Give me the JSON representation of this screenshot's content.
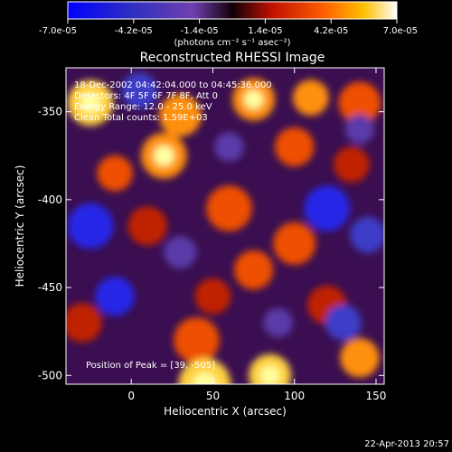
{
  "chart_data": {
    "type": "heatmap",
    "title": "Reconstructed RHESSI Image",
    "xlabel": "Heliocentric X (arcsec)",
    "ylabel": "Heliocentric Y (arcsec)",
    "xlim": [
      -40,
      155
    ],
    "ylim": [
      -505,
      -325
    ],
    "x_ticks": [
      0,
      50,
      100,
      150
    ],
    "y_ticks": [
      -350,
      -400,
      -450,
      -500
    ],
    "colorbar": {
      "ticks": [
        "-7.0e-05",
        "-4.2e-05",
        "-1.4e-05",
        "1.4e-05",
        "4.2e-05",
        "7.0e-05"
      ],
      "unit_label": "(photons cm⁻² s⁻¹ asec⁻²)",
      "range": [
        -7e-05,
        7e-05
      ]
    },
    "annotations": {
      "time": "18-Dec-2002 04:42:04.000 to 04:45:36.000",
      "detectors": "Detectors: 4F 5F 6F 7F 8F, Att 0",
      "energy": "Energy Range: 12.0 - 25.0 keV",
      "clean": "Clean    Total counts: 1.59E+03",
      "peak": "Position of Peak = [39, -505]"
    },
    "peak": {
      "x": 39,
      "y": -505
    },
    "blobs": [
      {
        "x": -25,
        "y": -345,
        "r": 14,
        "v": 1.0
      },
      {
        "x": 30,
        "y": -352,
        "r": 13,
        "v": 0.8
      },
      {
        "x": 75,
        "y": -343,
        "r": 13,
        "v": 0.85
      },
      {
        "x": 140,
        "y": -345,
        "r": 13,
        "v": 0.7
      },
      {
        "x": 110,
        "y": -342,
        "r": 11,
        "v": 0.75
      },
      {
        "x": 100,
        "y": -370,
        "r": 12,
        "v": 0.7
      },
      {
        "x": 20,
        "y": -375,
        "r": 14,
        "v": 0.85
      },
      {
        "x": -10,
        "y": -385,
        "r": 11,
        "v": 0.6
      },
      {
        "x": 60,
        "y": -405,
        "r": 14,
        "v": 0.7
      },
      {
        "x": 10,
        "y": -415,
        "r": 12,
        "v": 0.55
      },
      {
        "x": 100,
        "y": -425,
        "r": 13,
        "v": 0.7
      },
      {
        "x": 75,
        "y": -440,
        "r": 12,
        "v": 0.6
      },
      {
        "x": 50,
        "y": -455,
        "r": 11,
        "v": 0.55
      },
      {
        "x": 120,
        "y": -460,
        "r": 12,
        "v": 0.55
      },
      {
        "x": 40,
        "y": -480,
        "r": 14,
        "v": 0.7
      },
      {
        "x": 45,
        "y": -505,
        "r": 16,
        "v": 1.0
      },
      {
        "x": 85,
        "y": -500,
        "r": 13,
        "v": 0.9
      },
      {
        "x": 140,
        "y": -490,
        "r": 12,
        "v": 0.75
      },
      {
        "x": -30,
        "y": -470,
        "r": 12,
        "v": 0.55
      },
      {
        "x": 135,
        "y": -380,
        "r": 11,
        "v": 0.5
      },
      {
        "x": -25,
        "y": -415,
        "r": 14,
        "v": -0.8
      },
      {
        "x": 5,
        "y": -338,
        "r": 11,
        "v": -0.6
      },
      {
        "x": 120,
        "y": -405,
        "r": 14,
        "v": -0.9
      },
      {
        "x": 145,
        "y": -420,
        "r": 11,
        "v": -0.7
      },
      {
        "x": -10,
        "y": -455,
        "r": 12,
        "v": -0.75
      },
      {
        "x": 130,
        "y": -470,
        "r": 11,
        "v": -0.6
      },
      {
        "x": 90,
        "y": -470,
        "r": 9,
        "v": -0.5
      },
      {
        "x": 30,
        "y": -430,
        "r": 10,
        "v": -0.5
      },
      {
        "x": 60,
        "y": -370,
        "r": 9,
        "v": -0.45
      },
      {
        "x": 140,
        "y": -360,
        "r": 9,
        "v": -0.5
      }
    ]
  },
  "footer": {
    "timestamp": "22-Apr-2013 20:57"
  }
}
